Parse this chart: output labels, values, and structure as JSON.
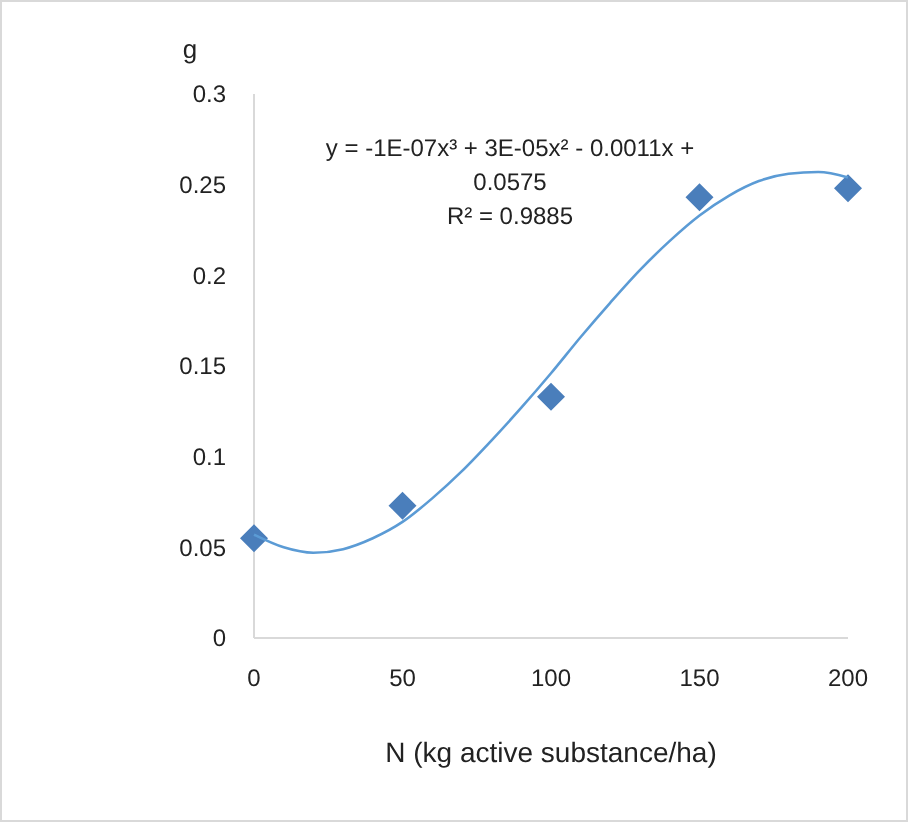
{
  "chart_data": {
    "type": "scatter",
    "xlabel": "N (kg active substance/ha)",
    "ylabel": "g",
    "xlim": [
      0,
      200
    ],
    "xticks": [
      0,
      50,
      100,
      150,
      200
    ],
    "ylim": [
      0,
      0.3
    ],
    "yticks": [
      0,
      0.05,
      0.1,
      0.15,
      0.2,
      0.25,
      0.3
    ],
    "grid": false,
    "annotations": [
      "y = -1E-07x³ + 3E-05x² - 0.0011x + 0.0575",
      "R² = 0.9885"
    ],
    "series": [
      {
        "marker": "diamond",
        "color": "#4a7ebb",
        "x": [
          0,
          50,
          100,
          150,
          200
        ],
        "values": [
          0.055,
          0.073,
          0.133,
          0.243,
          0.248
        ]
      },
      {
        "type": "line",
        "marker": "none",
        "line_style": "solid",
        "color": "#5b9bd5",
        "x": [
          0,
          10,
          20,
          30,
          40,
          50,
          60,
          70,
          80,
          90,
          100,
          110,
          120,
          130,
          140,
          150,
          160,
          170,
          180,
          190,
          200
        ],
        "values": [
          0.057,
          0.05,
          0.047,
          0.049,
          0.055,
          0.064,
          0.077,
          0.092,
          0.109,
          0.127,
          0.146,
          0.166,
          0.185,
          0.203,
          0.219,
          0.233,
          0.244,
          0.252,
          0.256,
          0.257,
          0.254
        ]
      }
    ]
  }
}
